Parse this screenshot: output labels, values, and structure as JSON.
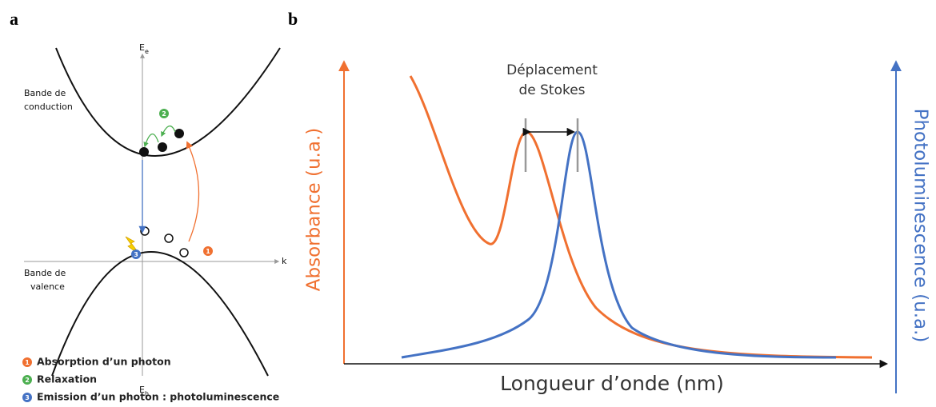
{
  "panel_a": {
    "label": "a",
    "energy_top": {
      "symbol": "E",
      "subscript": "e"
    },
    "k_axis": "k",
    "energy_bottom": {
      "symbol": "E",
      "subscript": "h"
    },
    "conduction_band": [
      "Bande de",
      "conduction"
    ],
    "valence_band": [
      "Bande de",
      "valence"
    ],
    "step_numbers": [
      "1",
      "2",
      "3"
    ],
    "legend": [
      "Absorption d’un photon",
      "Relaxation",
      "Emission d’un photon : photoluminescence"
    ]
  },
  "panel_b": {
    "label": "b",
    "stokes_shift": [
      "Déplacement",
      "de Stokes"
    ],
    "y_label": "Absorbance (u.a.)",
    "y2_label": "Photoluminescence (u.a.)",
    "x_label": "Longueur d’onde (nm)"
  }
}
